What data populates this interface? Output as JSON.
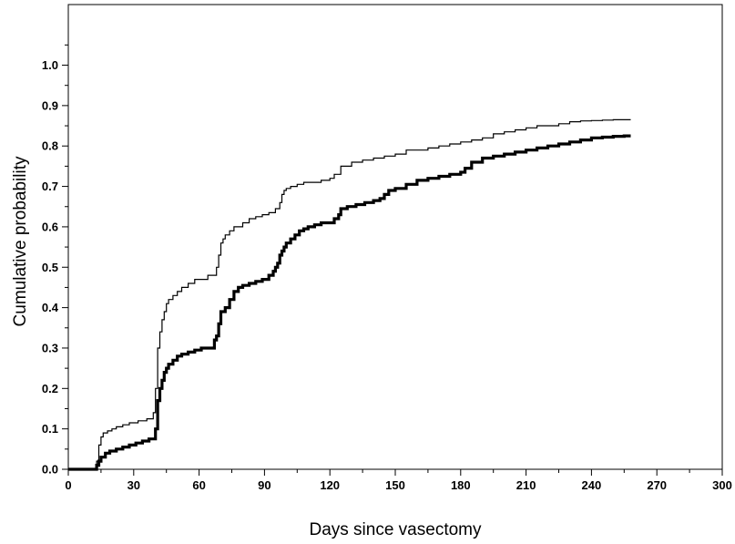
{
  "chart_data": {
    "type": "line",
    "title": "",
    "xlabel": "Days since vasectomy",
    "ylabel": "Cumulative probability",
    "xlim": [
      0,
      300
    ],
    "ylim": [
      0,
      1.15
    ],
    "x_ticks": [
      0,
      30,
      60,
      90,
      120,
      150,
      180,
      210,
      240,
      270,
      300
    ],
    "x_tick_labels": [
      "0",
      "30",
      "60",
      "90",
      "120",
      "150",
      "180",
      "210",
      "240",
      "270",
      "300"
    ],
    "y_ticks": [
      0,
      0.1,
      0.2,
      0.3,
      0.4,
      0.5,
      0.6,
      0.7,
      0.8,
      0.9,
      1.0
    ],
    "y_tick_labels": [
      "0.0",
      "0.1",
      "0.2",
      "0.3",
      "0.4",
      "0.5",
      "0.6",
      "0.7",
      "0.8",
      "0.9",
      "1.0"
    ],
    "grid": false,
    "legend": "none",
    "step": true,
    "series": [
      {
        "style": "thin",
        "color": "#000000",
        "x": [
          0,
          13,
          14,
          15,
          16,
          18,
          20,
          22,
          25,
          28,
          32,
          36,
          39,
          40,
          41,
          42,
          43,
          44,
          45,
          46,
          48,
          50,
          52,
          55,
          58,
          61,
          64,
          66,
          68,
          69,
          70,
          71,
          72,
          74,
          76,
          78,
          80,
          83,
          86,
          89,
          92,
          95,
          97,
          98,
          99,
          100,
          102,
          105,
          108,
          112,
          116,
          120,
          122,
          125,
          130,
          135,
          140,
          145,
          150,
          155,
          160,
          165,
          170,
          175,
          180,
          185,
          190,
          195,
          200,
          205,
          210,
          215,
          220,
          225,
          230,
          235,
          240,
          245,
          250,
          258
        ],
        "y": [
          0,
          0.02,
          0.06,
          0.08,
          0.09,
          0.095,
          0.1,
          0.105,
          0.11,
          0.115,
          0.12,
          0.125,
          0.14,
          0.2,
          0.3,
          0.34,
          0.37,
          0.39,
          0.41,
          0.42,
          0.43,
          0.44,
          0.45,
          0.46,
          0.47,
          0.47,
          0.48,
          0.48,
          0.5,
          0.53,
          0.56,
          0.57,
          0.58,
          0.59,
          0.6,
          0.6,
          0.61,
          0.62,
          0.625,
          0.63,
          0.635,
          0.645,
          0.66,
          0.68,
          0.69,
          0.695,
          0.7,
          0.705,
          0.71,
          0.71,
          0.715,
          0.72,
          0.73,
          0.75,
          0.76,
          0.765,
          0.77,
          0.775,
          0.78,
          0.79,
          0.79,
          0.795,
          0.8,
          0.805,
          0.81,
          0.815,
          0.82,
          0.83,
          0.835,
          0.84,
          0.845,
          0.85,
          0.85,
          0.855,
          0.86,
          0.862,
          0.863,
          0.864,
          0.865,
          0.865
        ]
      },
      {
        "style": "thick",
        "color": "#000000",
        "x": [
          0,
          13,
          14,
          15,
          17,
          19,
          22,
          25,
          28,
          31,
          34,
          37,
          40,
          41,
          42,
          43,
          44,
          45,
          46,
          48,
          50,
          52,
          55,
          58,
          61,
          64,
          67,
          68,
          69,
          70,
          72,
          74,
          76,
          78,
          80,
          83,
          86,
          89,
          92,
          94,
          95,
          96,
          97,
          98,
          99,
          100,
          102,
          104,
          106,
          108,
          110,
          113,
          116,
          120,
          122,
          124,
          125,
          128,
          132,
          136,
          140,
          143,
          145,
          147,
          150,
          155,
          160,
          165,
          170,
          175,
          180,
          182,
          185,
          190,
          195,
          200,
          205,
          210,
          215,
          220,
          225,
          230,
          235,
          240,
          245,
          250,
          255,
          258
        ],
        "y": [
          0,
          0.01,
          0.02,
          0.03,
          0.04,
          0.045,
          0.05,
          0.055,
          0.06,
          0.065,
          0.07,
          0.075,
          0.1,
          0.17,
          0.2,
          0.22,
          0.24,
          0.25,
          0.26,
          0.27,
          0.28,
          0.285,
          0.29,
          0.295,
          0.3,
          0.3,
          0.32,
          0.33,
          0.36,
          0.39,
          0.4,
          0.42,
          0.44,
          0.45,
          0.455,
          0.46,
          0.465,
          0.47,
          0.48,
          0.49,
          0.5,
          0.51,
          0.53,
          0.54,
          0.55,
          0.56,
          0.57,
          0.58,
          0.59,
          0.595,
          0.6,
          0.605,
          0.61,
          0.61,
          0.62,
          0.63,
          0.645,
          0.65,
          0.655,
          0.66,
          0.665,
          0.67,
          0.68,
          0.69,
          0.695,
          0.705,
          0.715,
          0.72,
          0.725,
          0.73,
          0.735,
          0.745,
          0.76,
          0.77,
          0.775,
          0.78,
          0.785,
          0.79,
          0.795,
          0.8,
          0.805,
          0.81,
          0.815,
          0.82,
          0.822,
          0.824,
          0.825,
          0.825
        ]
      }
    ]
  }
}
